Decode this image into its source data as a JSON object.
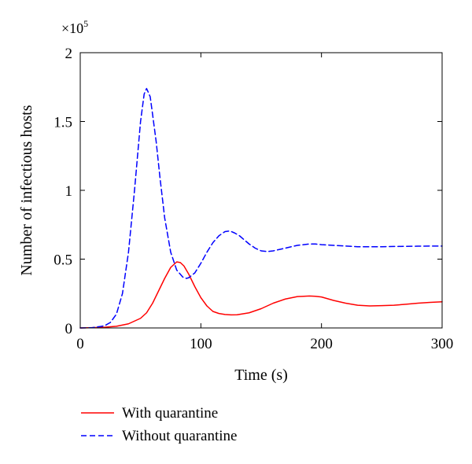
{
  "chart_data": {
    "type": "line",
    "xlabel": "Time (s)",
    "ylabel": "Number of infectious hosts",
    "y_multiplier_prefix": "×10",
    "y_multiplier_exp": "5",
    "xlim": [
      0,
      300
    ],
    "ylim": [
      0,
      2
    ],
    "x_ticks": [
      0,
      100,
      200,
      300
    ],
    "x_tick_labels": [
      "0",
      "100",
      "200",
      "300"
    ],
    "y_ticks": [
      0,
      0.5,
      1,
      1.5,
      2
    ],
    "y_tick_labels": [
      "0",
      "0.5",
      "1",
      "1.5",
      "2"
    ],
    "grid": false,
    "legend_position": "bottom-left, below plot",
    "series": [
      {
        "name": "With quarantine",
        "color": "#ff0000",
        "style": "solid",
        "x": [
          0,
          10,
          20,
          30,
          40,
          50,
          55,
          60,
          65,
          70,
          75,
          80,
          83,
          86,
          90,
          95,
          100,
          105,
          110,
          115,
          120,
          125,
          130,
          140,
          150,
          160,
          170,
          180,
          190,
          195,
          200,
          210,
          220,
          230,
          240,
          250,
          260,
          270,
          280,
          290,
          300
        ],
        "y": [
          0,
          0.002,
          0.005,
          0.012,
          0.03,
          0.07,
          0.11,
          0.18,
          0.27,
          0.36,
          0.44,
          0.48,
          0.475,
          0.45,
          0.39,
          0.3,
          0.22,
          0.16,
          0.12,
          0.105,
          0.098,
          0.095,
          0.096,
          0.11,
          0.14,
          0.18,
          0.21,
          0.228,
          0.232,
          0.23,
          0.225,
          0.2,
          0.18,
          0.165,
          0.16,
          0.162,
          0.165,
          0.172,
          0.18,
          0.186,
          0.19
        ]
      },
      {
        "name": "Without quarantine",
        "color": "#0000ff",
        "style": "dashed",
        "x": [
          0,
          10,
          20,
          25,
          30,
          35,
          40,
          45,
          50,
          53,
          55,
          58,
          60,
          63,
          66,
          70,
          75,
          80,
          85,
          88,
          90,
          95,
          100,
          105,
          110,
          115,
          120,
          124,
          128,
          132,
          136,
          140,
          145,
          150,
          155,
          160,
          165,
          170,
          180,
          190,
          195,
          200,
          210,
          220,
          230,
          240,
          250,
          260,
          270,
          280,
          290,
          300
        ],
        "y": [
          0,
          0.002,
          0.015,
          0.04,
          0.1,
          0.25,
          0.55,
          1.0,
          1.5,
          1.7,
          1.74,
          1.68,
          1.55,
          1.35,
          1.1,
          0.8,
          0.55,
          0.42,
          0.37,
          0.36,
          0.365,
          0.4,
          0.47,
          0.55,
          0.62,
          0.67,
          0.7,
          0.705,
          0.69,
          0.67,
          0.64,
          0.61,
          0.58,
          0.56,
          0.555,
          0.56,
          0.57,
          0.58,
          0.6,
          0.61,
          0.61,
          0.605,
          0.6,
          0.595,
          0.59,
          0.59,
          0.59,
          0.592,
          0.593,
          0.594,
          0.595,
          0.595
        ]
      }
    ]
  }
}
